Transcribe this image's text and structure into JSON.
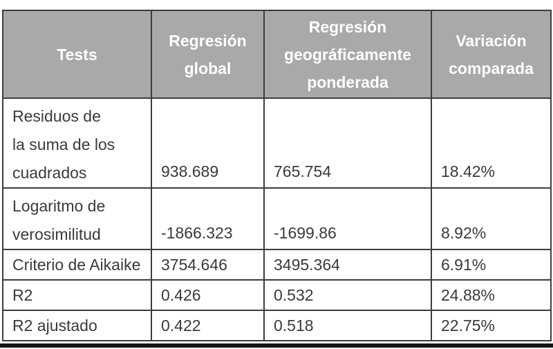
{
  "colors": {
    "header-bg": "#a9a9ab",
    "header-text": "#ffffff",
    "border": "#3c3c3c",
    "body-text": "#3a3a3a",
    "bottom-rule": "#141414",
    "page-bg": "#ffffff"
  },
  "table": {
    "columns": [
      {
        "label": "Tests"
      },
      {
        "label": "Regresión\nglobal"
      },
      {
        "label": "Regresión\ngeográficamente\nponderada"
      },
      {
        "label": "Variación\ncomparada"
      }
    ],
    "rows": [
      {
        "test": "Residuos de\nla suma de los\ncuadrados",
        "global": "938.689",
        "gwr": "765.754",
        "variation": "18.42%"
      },
      {
        "test": "Logaritmo de\nverosimilitud",
        "global": "-1866.323",
        "gwr": "-1699.86",
        "variation": "8.92%"
      },
      {
        "test": "Criterio de Aikaike",
        "global": "3754.646",
        "gwr": "3495.364",
        "variation": "6.91%"
      },
      {
        "test": "R2",
        "global": "0.426",
        "gwr": "0.532",
        "variation": "24.88%"
      },
      {
        "test": "R2 ajustado",
        "global": "0.422",
        "gwr": "0.518",
        "variation": "22.75%"
      }
    ]
  },
  "chart_data": {
    "type": "table",
    "title": "",
    "columns": [
      "Tests",
      "Regresión global",
      "Regresión geográficamente ponderada",
      "Variación comparada"
    ],
    "rows": [
      [
        "Residuos de la suma de los cuadrados",
        938.689,
        765.754,
        "18.42%"
      ],
      [
        "Logaritmo de verosimilitud",
        -1866.323,
        -1699.86,
        "8.92%"
      ],
      [
        "Criterio de Aikaike",
        3754.646,
        3495.364,
        "6.91%"
      ],
      [
        "R2",
        0.426,
        0.532,
        "24.88%"
      ],
      [
        "R2 ajustado",
        0.422,
        0.518,
        "22.75%"
      ]
    ]
  }
}
